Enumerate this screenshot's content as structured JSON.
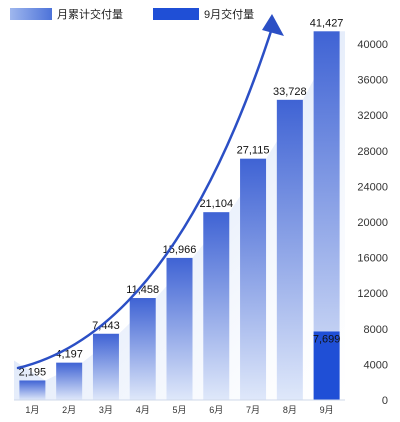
{
  "legend": {
    "cumulative": "月累计交付量",
    "monthly": "9月交付量"
  },
  "colors": {
    "bar_top": "#3f63d4",
    "bar_bottom": "#dfe8fa",
    "monthly_bar": "#1f4fd6",
    "arrow": "#2b4fc5",
    "area": "#8fb0ec"
  },
  "chart_data": {
    "type": "bar",
    "categories": [
      "1月",
      "2月",
      "3月",
      "4月",
      "5月",
      "6月",
      "7月",
      "8月",
      "9月"
    ],
    "series": [
      {
        "name": "月累计交付量",
        "values": [
          2195,
          4197,
          7443,
          11458,
          15966,
          21104,
          27115,
          33728,
          41427
        ]
      },
      {
        "name": "9月交付量",
        "values": [
          null,
          null,
          null,
          null,
          null,
          null,
          null,
          null,
          7699
        ]
      }
    ],
    "data_labels": [
      "2,195",
      "4,197",
      "7,443",
      "11,458",
      "15,966",
      "21,104",
      "27,115",
      "33,728",
      "41,427"
    ],
    "monthly_label": "7,699",
    "yticks": [
      0,
      4000,
      8000,
      12000,
      16000,
      20000,
      24000,
      28000,
      32000,
      36000,
      40000
    ],
    "ylim": [
      0,
      40000
    ],
    "y_axis_position": "right",
    "grid": false,
    "legend_position": "top-left"
  }
}
